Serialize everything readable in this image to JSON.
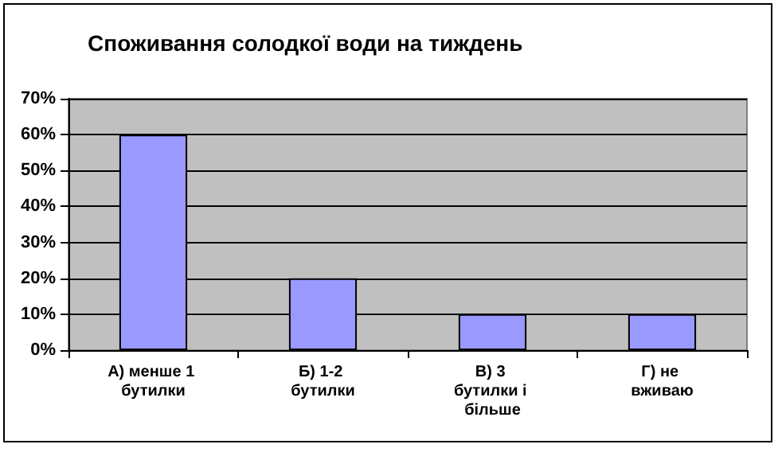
{
  "chart_data": {
    "type": "bar",
    "title": "Споживання солодкої води на тиждень",
    "categories": [
      "А) менше 1 бутилки",
      "Б) 1-2 бутилки",
      "В) 3 бутилки і більше",
      "Г) не вживаю"
    ],
    "values": [
      60,
      20,
      10,
      10
    ],
    "color": "#9999ff",
    "ylim": [
      0,
      70
    ],
    "yticks": [
      {
        "value": 0,
        "label": "0%"
      },
      {
        "value": 10,
        "label": "10%"
      },
      {
        "value": 20,
        "label": "20%"
      },
      {
        "value": 30,
        "label": "30%"
      },
      {
        "value": 40,
        "label": "40%"
      },
      {
        "value": 50,
        "label": "50%"
      },
      {
        "value": 60,
        "label": "60%"
      },
      {
        "value": 70,
        "label": "70%"
      }
    ],
    "grid": "y"
  }
}
